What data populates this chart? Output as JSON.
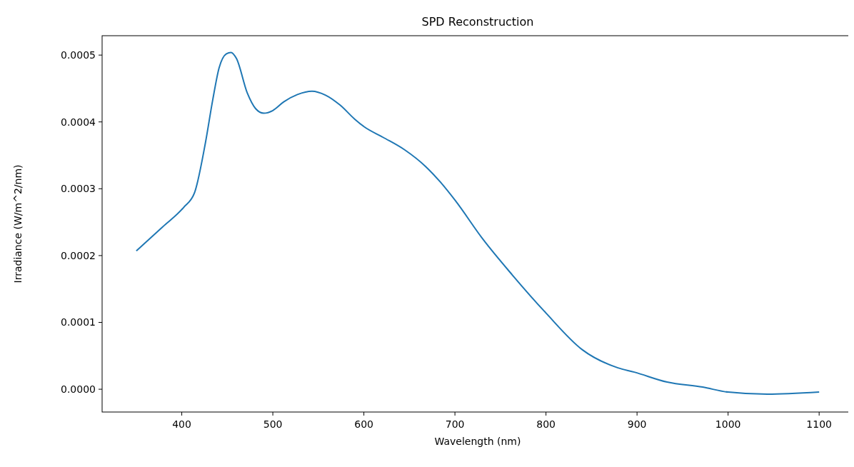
{
  "chart_data": {
    "type": "line",
    "title": "SPD Reconstruction",
    "xlabel": "Wavelength (nm)",
    "ylabel": "Irradiance (W/m^2/nm)",
    "xlim": [
      312.5,
      1137.5
    ],
    "xticks": [
      400,
      500,
      600,
      700,
      800,
      900,
      1000,
      1100
    ],
    "ylim": [
      -3.41e-05,
      0.000529
    ],
    "yticks": [
      {
        "value": 0,
        "label": "0.0000"
      },
      {
        "value": 0.0001,
        "label": "0.0001"
      },
      {
        "value": 0.0002,
        "label": "0.0002"
      },
      {
        "value": 0.0003,
        "label": "0.0003"
      },
      {
        "value": 0.0004,
        "label": "0.0004"
      },
      {
        "value": 0.0005,
        "label": "0.0005"
      }
    ],
    "grid": false,
    "series": [
      {
        "color": "#1f77b4",
        "x": [
          350,
          379,
          402,
          414,
          426,
          434,
          441,
          449,
          454,
          460,
          472,
          481,
          490,
          500,
          512,
          527,
          543,
          558,
          574,
          590,
          600,
          621,
          645,
          668,
          684,
          700,
          731,
          763,
          800,
          840,
          879,
          897,
          933,
          972,
          1000,
          1043,
          1100
        ],
        "values": [
          0.000207,
          0.000243,
          0.000272,
          0.000294,
          0.000369,
          0.000433,
          0.000481,
          0.000502,
          0.000504,
          0.000495,
          0.000443,
          0.00042,
          0.000413,
          0.000417,
          0.00043,
          0.000441,
          0.000446,
          0.00044,
          0.000425,
          0.000404,
          0.000393,
          0.000377,
          0.000358,
          0.000333,
          0.00031,
          0.000283,
          0.000224,
          0.000171,
          0.000114,
          5.9e-05,
          3.2e-05,
          2.56e-05,
          1.07e-05,
          3.2e-06,
          -4.3e-06,
          -7.5e-06,
          -4.3e-06
        ]
      }
    ]
  }
}
